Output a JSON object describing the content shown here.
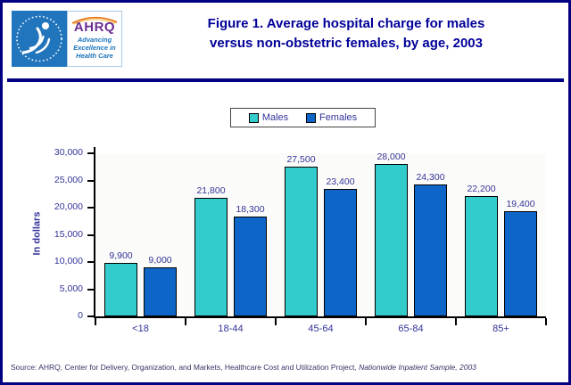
{
  "header": {
    "logo": {
      "hhs_seal_icon": "hhs-eagle-seal",
      "ahrq_acronym": "AHRQ",
      "tagline_line1": "Advancing",
      "tagline_line2": "Excellence in",
      "tagline_line3": "Health Care"
    },
    "title_line1": "Figure 1. Average hospital charge for males",
    "title_line2": "versus non-obstetric females, by age, 2003"
  },
  "chart_data": {
    "type": "bar",
    "title": "Figure 1. Average hospital charge for males versus non-obstetric females, by age, 2003",
    "ylabel": "In dollars",
    "xlabel": "",
    "ylim": [
      0,
      30000
    ],
    "ytick_step": 5000,
    "ytick_labels": [
      "0",
      "5,000",
      "10,000",
      "15,000",
      "20,000",
      "25,000",
      "30,000"
    ],
    "grid": false,
    "legend_position": "top-center",
    "categories": [
      "<18",
      "18-44",
      "45-64",
      "65-84",
      "85+"
    ],
    "series": [
      {
        "name": "Males",
        "color": "#33CCCC",
        "values": [
          9900,
          21800,
          27500,
          28000,
          22200
        ],
        "labels": [
          "9,900",
          "21,800",
          "27,500",
          "28,000",
          "22,200"
        ]
      },
      {
        "name": "Females",
        "color": "#0D65C8",
        "values": [
          9000,
          18300,
          23400,
          24300,
          19400
        ],
        "labels": [
          "9,000",
          "18,300",
          "23,400",
          "24,300",
          "19,400"
        ]
      }
    ]
  },
  "source": {
    "text_regular": "Source: AHRQ, Center for Delivery, Organization, and Markets, Healthcare Cost and Utilization Project, ",
    "text_italic": "Nationwide Inpatient Sample, 2003"
  },
  "colors": {
    "title_text": "#000099",
    "axis_text": "#333399",
    "page_border": "#000080",
    "males_bar": "#33CCCC",
    "females_bar": "#0D65C8"
  }
}
